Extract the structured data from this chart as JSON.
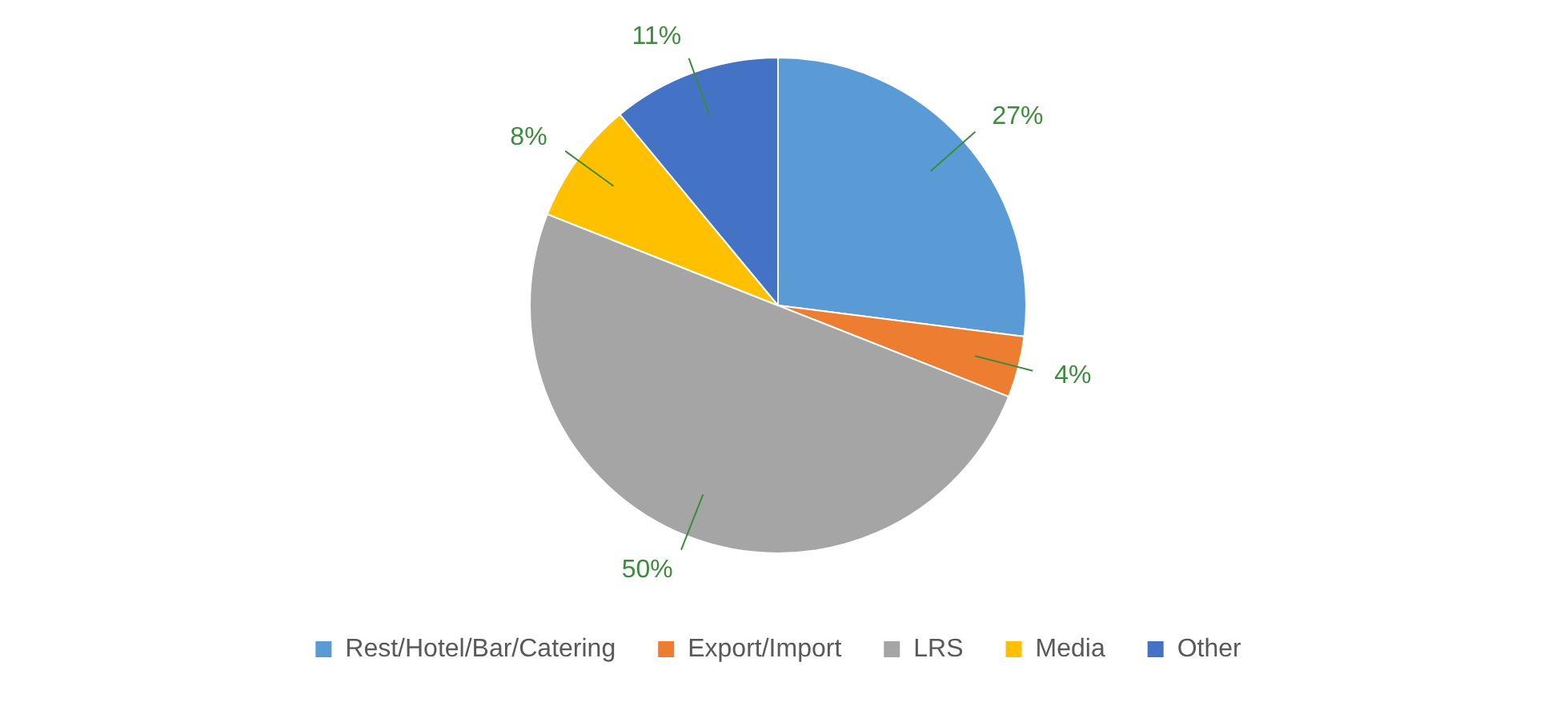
{
  "chart_data": {
    "type": "pie",
    "categories": [
      "Rest/Hotel/Bar/Catering",
      "Export/Import",
      "LRS",
      "Media",
      "Other"
    ],
    "values": [
      27,
      4,
      50,
      8,
      11
    ],
    "colors": [
      "#5b9bd5",
      "#ed7d31",
      "#a5a5a5",
      "#ffc000",
      "#4472c4"
    ],
    "value_labels": [
      "27%",
      "4%",
      "50%",
      "8%",
      "11%"
    ],
    "legend": "bottom"
  }
}
